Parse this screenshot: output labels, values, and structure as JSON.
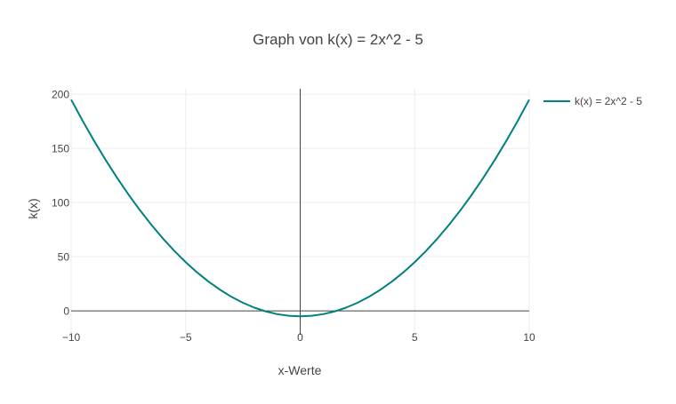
{
  "chart_data": {
    "type": "line",
    "title": "Graph von k(x) = 2x^2 - 5",
    "xlabel": "x-Werte",
    "ylabel": "k(x)",
    "xlim": [
      -10,
      10
    ],
    "ylim": [
      -22,
      205
    ],
    "x_ticks": [
      -10,
      -5,
      0,
      5,
      10
    ],
    "x_tick_labels": [
      "−10",
      "−5",
      "0",
      "5",
      "10"
    ],
    "y_ticks": [
      0,
      50,
      100,
      150,
      200
    ],
    "y_tick_labels": [
      "0",
      "50",
      "100",
      "150",
      "200"
    ],
    "grid": true,
    "zero_lines": true,
    "legend_position": "top-right",
    "series": [
      {
        "name": "k(x) = 2x^2 - 5",
        "color": "#008080",
        "x": [
          -10,
          -9.5,
          -9,
          -8.5,
          -8,
          -7.5,
          -7,
          -6.5,
          -6,
          -5.5,
          -5,
          -4.5,
          -4,
          -3.5,
          -3,
          -2.5,
          -2,
          -1.5,
          -1,
          -0.5,
          0,
          0.5,
          1,
          1.5,
          2,
          2.5,
          3,
          3.5,
          4,
          4.5,
          5,
          5.5,
          6,
          6.5,
          7,
          7.5,
          8,
          8.5,
          9,
          9.5,
          10
        ],
        "y": [
          195,
          175.5,
          157,
          139.5,
          123,
          107.5,
          93,
          79.5,
          67,
          55.5,
          45,
          35.5,
          27,
          19.5,
          13,
          7.5,
          3,
          -0.5,
          -3,
          -4.5,
          -5,
          -4.5,
          -3,
          -0.5,
          3,
          7.5,
          13,
          19.5,
          27,
          35.5,
          45,
          55.5,
          67,
          79.5,
          93,
          107.5,
          123,
          139.5,
          157,
          175.5,
          195
        ]
      }
    ]
  }
}
